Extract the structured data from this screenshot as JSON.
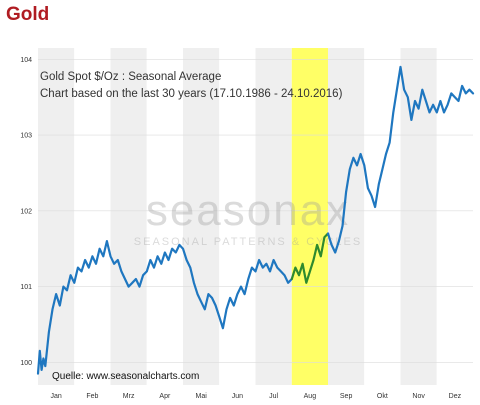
{
  "page": {
    "title": "Gold"
  },
  "chart_data": {
    "type": "line",
    "title": "Gold Spot   $/Oz : Seasonal Average",
    "subtitle": "Chart based on the last 30 years (17.10.1986 - 24.10.2016)",
    "source": "Quelle: www.seasonalcharts.com",
    "watermark": "seasonax",
    "watermark_sub": "SEASONAL PATTERNS & CYCLES",
    "months": [
      "Jan",
      "Feb",
      "Mrz",
      "Apr",
      "Mai",
      "Jun",
      "Jul",
      "Aug",
      "Sep",
      "Okt",
      "Nov",
      "Dez"
    ],
    "y_ticks": [
      100,
      101,
      102,
      103,
      104
    ],
    "ylim": [
      99.7,
      104.15
    ],
    "grid": true,
    "highlight": {
      "label": "Aug",
      "start_month": 7.0,
      "end_month": 8.0,
      "color": "#ffff66"
    },
    "line_color": "#1f77c0",
    "highlight_line_color": "#2e8a2e",
    "series": [
      {
        "values": [
          [
            0.0,
            99.85
          ],
          [
            0.05,
            100.15
          ],
          [
            0.1,
            99.9
          ],
          [
            0.15,
            100.05
          ],
          [
            0.2,
            99.95
          ],
          [
            0.3,
            100.4
          ],
          [
            0.4,
            100.7
          ],
          [
            0.5,
            100.9
          ],
          [
            0.6,
            100.75
          ],
          [
            0.7,
            101.0
          ],
          [
            0.8,
            100.95
          ],
          [
            0.9,
            101.15
          ],
          [
            1.0,
            101.05
          ],
          [
            1.1,
            101.25
          ],
          [
            1.2,
            101.2
          ],
          [
            1.3,
            101.35
          ],
          [
            1.4,
            101.25
          ],
          [
            1.5,
            101.4
          ],
          [
            1.6,
            101.3
          ],
          [
            1.7,
            101.5
          ],
          [
            1.8,
            101.4
          ],
          [
            1.9,
            101.6
          ],
          [
            2.0,
            101.4
          ],
          [
            2.1,
            101.3
          ],
          [
            2.2,
            101.35
          ],
          [
            2.3,
            101.2
          ],
          [
            2.4,
            101.1
          ],
          [
            2.5,
            101.0
          ],
          [
            2.6,
            101.05
          ],
          [
            2.7,
            101.1
          ],
          [
            2.8,
            101.0
          ],
          [
            2.9,
            101.15
          ],
          [
            3.0,
            101.2
          ],
          [
            3.1,
            101.35
          ],
          [
            3.2,
            101.25
          ],
          [
            3.3,
            101.4
          ],
          [
            3.4,
            101.3
          ],
          [
            3.5,
            101.45
          ],
          [
            3.6,
            101.35
          ],
          [
            3.7,
            101.5
          ],
          [
            3.8,
            101.45
          ],
          [
            3.9,
            101.55
          ],
          [
            4.0,
            101.5
          ],
          [
            4.1,
            101.35
          ],
          [
            4.2,
            101.25
          ],
          [
            4.3,
            101.05
          ],
          [
            4.4,
            100.9
          ],
          [
            4.5,
            100.8
          ],
          [
            4.6,
            100.7
          ],
          [
            4.7,
            100.9
          ],
          [
            4.8,
            100.85
          ],
          [
            4.9,
            100.75
          ],
          [
            5.0,
            100.6
          ],
          [
            5.1,
            100.45
          ],
          [
            5.2,
            100.7
          ],
          [
            5.3,
            100.85
          ],
          [
            5.4,
            100.75
          ],
          [
            5.5,
            100.9
          ],
          [
            5.6,
            101.0
          ],
          [
            5.7,
            100.9
          ],
          [
            5.8,
            101.1
          ],
          [
            5.9,
            101.25
          ],
          [
            6.0,
            101.2
          ],
          [
            6.1,
            101.35
          ],
          [
            6.2,
            101.25
          ],
          [
            6.3,
            101.3
          ],
          [
            6.4,
            101.2
          ],
          [
            6.5,
            101.35
          ],
          [
            6.6,
            101.25
          ],
          [
            6.7,
            101.2
          ],
          [
            6.8,
            101.15
          ],
          [
            6.9,
            101.05
          ],
          [
            7.0,
            101.1
          ],
          [
            7.1,
            101.25
          ],
          [
            7.2,
            101.15
          ],
          [
            7.3,
            101.3
          ],
          [
            7.4,
            101.05
          ],
          [
            7.5,
            101.2
          ],
          [
            7.6,
            101.35
          ],
          [
            7.7,
            101.55
          ],
          [
            7.8,
            101.4
          ],
          [
            7.9,
            101.65
          ],
          [
            8.0,
            101.7
          ],
          [
            8.1,
            101.55
          ],
          [
            8.2,
            101.45
          ],
          [
            8.3,
            101.6
          ],
          [
            8.4,
            101.8
          ],
          [
            8.5,
            102.25
          ],
          [
            8.6,
            102.55
          ],
          [
            8.7,
            102.7
          ],
          [
            8.8,
            102.6
          ],
          [
            8.9,
            102.75
          ],
          [
            9.0,
            102.6
          ],
          [
            9.1,
            102.3
          ],
          [
            9.2,
            102.2
          ],
          [
            9.3,
            102.05
          ],
          [
            9.4,
            102.35
          ],
          [
            9.5,
            102.55
          ],
          [
            9.6,
            102.75
          ],
          [
            9.7,
            102.9
          ],
          [
            9.8,
            103.3
          ],
          [
            9.9,
            103.6
          ],
          [
            10.0,
            103.9
          ],
          [
            10.1,
            103.6
          ],
          [
            10.2,
            103.5
          ],
          [
            10.3,
            103.2
          ],
          [
            10.4,
            103.45
          ],
          [
            10.5,
            103.35
          ],
          [
            10.6,
            103.6
          ],
          [
            10.7,
            103.45
          ],
          [
            10.8,
            103.3
          ],
          [
            10.9,
            103.4
          ],
          [
            11.0,
            103.3
          ],
          [
            11.1,
            103.45
          ],
          [
            11.2,
            103.3
          ],
          [
            11.3,
            103.4
          ],
          [
            11.4,
            103.55
          ],
          [
            11.5,
            103.5
          ],
          [
            11.6,
            103.45
          ],
          [
            11.7,
            103.65
          ],
          [
            11.8,
            103.55
          ],
          [
            11.9,
            103.6
          ],
          [
            12.0,
            103.55
          ]
        ]
      }
    ]
  }
}
